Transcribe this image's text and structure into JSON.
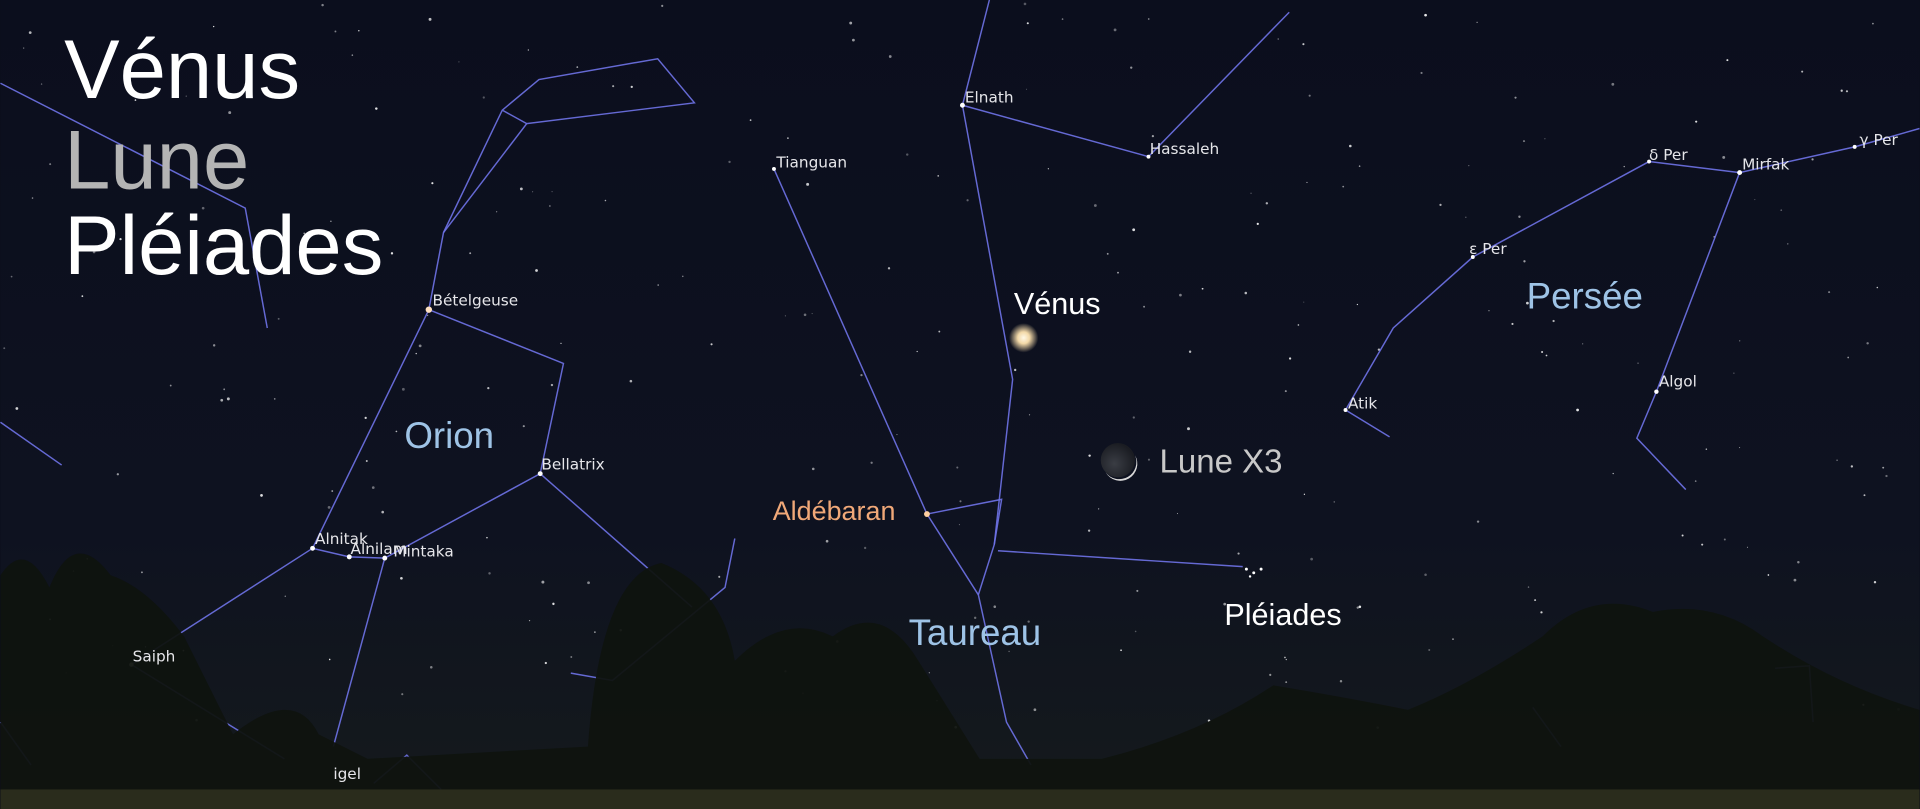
{
  "heading": {
    "lines": [
      "Vénus",
      "Lune",
      "Pléiades"
    ]
  },
  "stars": [
    "Elnath",
    "Hassaleh",
    "Tianguan",
    "Bételgeuse",
    "Bellatrix",
    "Alnitak",
    "Alnilam",
    "Mintaka",
    "Saiph",
    "igel",
    "δ Per",
    "Mirfak",
    "γ Per",
    "ε Per",
    "Atik",
    "Algol"
  ],
  "constellations": [
    "Orion",
    "Taureau",
    "Persée"
  ],
  "objects": [
    "Vénus",
    "Lune X3",
    "Pléiades",
    "Aldébaran"
  ]
}
